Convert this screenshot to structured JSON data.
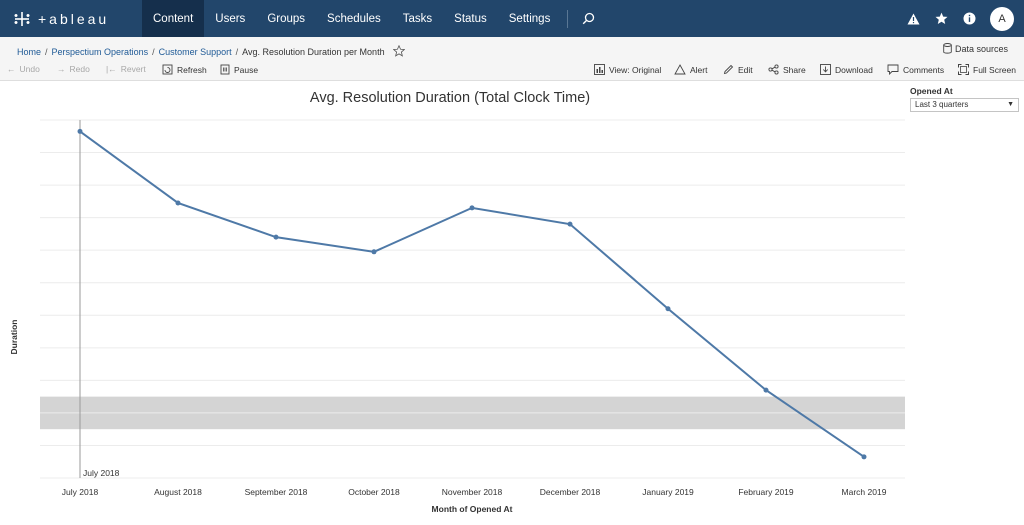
{
  "nav": {
    "brand": "+ableau",
    "items": [
      {
        "label": "Content",
        "active": true
      },
      {
        "label": "Users",
        "active": false
      },
      {
        "label": "Groups",
        "active": false
      },
      {
        "label": "Schedules",
        "active": false
      },
      {
        "label": "Tasks",
        "active": false
      },
      {
        "label": "Status",
        "active": false
      },
      {
        "label": "Settings",
        "active": false
      }
    ],
    "avatar_initial": "A",
    "icons": [
      "search-icon",
      "alert-triangle-icon",
      "star-icon",
      "info-icon"
    ]
  },
  "breadcrumb": {
    "home": "Home",
    "project": "Perspectium Operations",
    "workbook": "Customer Support",
    "view": "Avg. Resolution Duration per Month"
  },
  "data_sources": "Data sources",
  "toolbar": {
    "undo": "Undo",
    "redo": "Redo",
    "revert": "Revert",
    "refresh": "Refresh",
    "pause": "Pause",
    "view_original": "View: Original",
    "alert": "Alert",
    "edit": "Edit",
    "share": "Share",
    "download": "Download",
    "comments": "Comments",
    "full_screen": "Full Screen"
  },
  "filter": {
    "label": "Opened At",
    "value": "Last 3 quarters"
  },
  "colors": {
    "nav_bg": "#22466b",
    "nav_active": "#152f4c",
    "line": "#4e79a7",
    "band": "#d4d4d4",
    "link": "#1f5a96"
  },
  "chart_data": {
    "type": "line",
    "title": "Avg. Resolution Duration (Total Clock Time)",
    "xlabel": "Month of Opened At",
    "ylabel": "Duration",
    "categories": [
      "July 2018",
      "August 2018",
      "September 2018",
      "October 2018",
      "November 2018",
      "December 2018",
      "January 2019",
      "February 2019",
      "March 2019"
    ],
    "values": [
      9.65,
      7.45,
      6.4,
      5.95,
      7.3,
      6.8,
      4.2,
      1.7,
      -0.35
    ],
    "ylim": [
      -1,
      10
    ],
    "y_tick_labels_shown": false,
    "reference_line": {
      "x": "July 2018",
      "label": "July 2018"
    },
    "reference_band": {
      "from": 0.5,
      "to": 1.5
    },
    "grid": true
  }
}
